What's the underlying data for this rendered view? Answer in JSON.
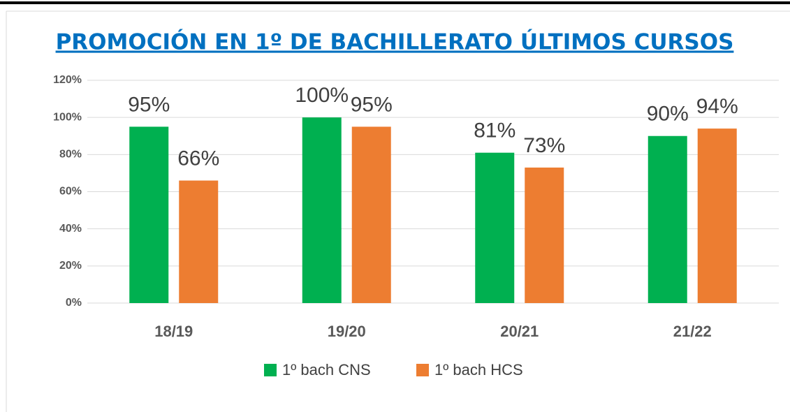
{
  "chart_data": {
    "type": "bar",
    "title": "PROMOCIÓN EN 1º DE BACHILLERATO ÚLTIMOS CURSOS",
    "categories": [
      "18/19",
      "19/20",
      "20/21",
      "21/22"
    ],
    "series": [
      {
        "name": "1º bach CNS",
        "color": "#00b050",
        "values": [
          95,
          100,
          81,
          90
        ],
        "value_labels": [
          "95%",
          "100%",
          "81%",
          "90%"
        ]
      },
      {
        "name": "1º bach HCS",
        "color": "#ed7d31",
        "values": [
          66,
          95,
          73,
          94
        ],
        "value_labels": [
          "66%",
          "95%",
          "73%",
          "94%"
        ]
      }
    ],
    "ylim": [
      0,
      120
    ],
    "yticks": [
      {
        "value": 0,
        "label": "0%"
      },
      {
        "value": 20,
        "label": "20%"
      },
      {
        "value": 40,
        "label": "40%"
      },
      {
        "value": 60,
        "label": "60%"
      },
      {
        "value": 80,
        "label": "80%"
      },
      {
        "value": 100,
        "label": "100%"
      },
      {
        "value": 120,
        "label": "120%"
      }
    ],
    "grid": true,
    "legend": "bottom"
  }
}
